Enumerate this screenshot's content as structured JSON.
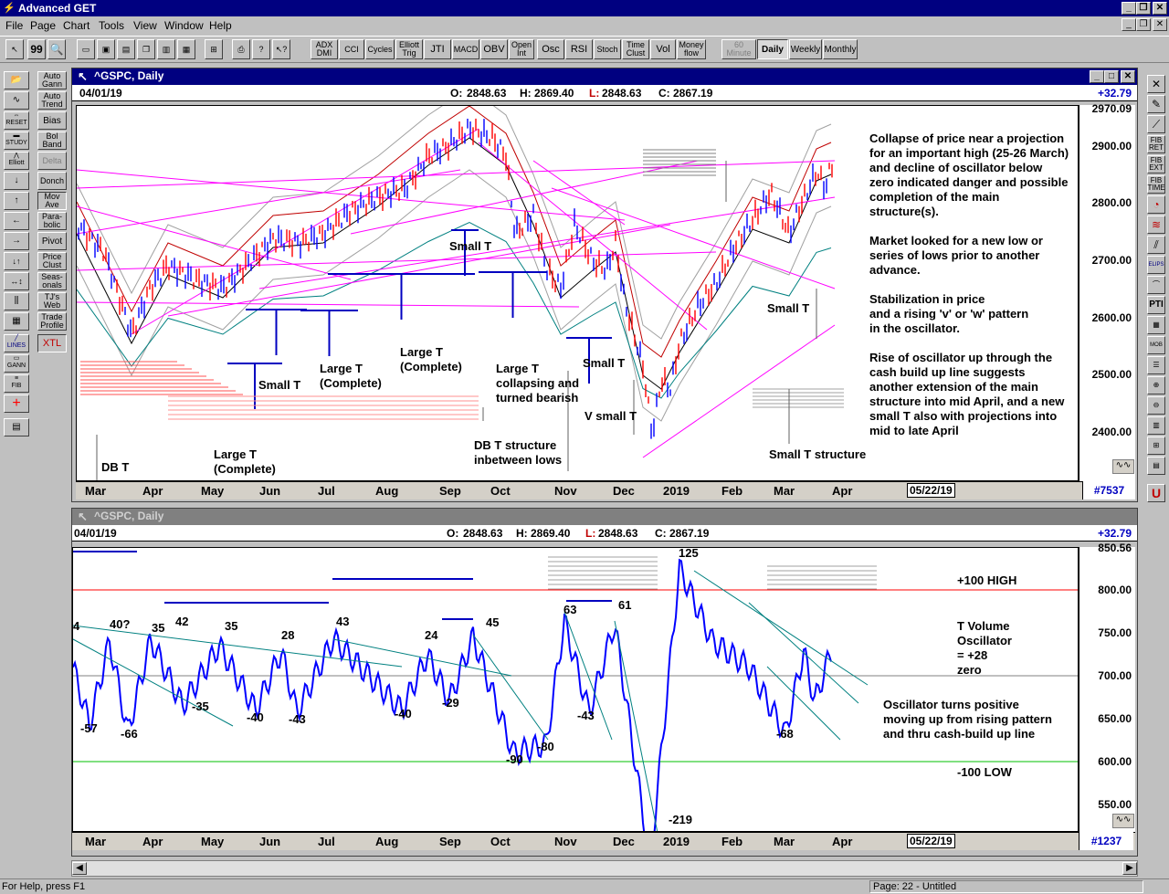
{
  "app": {
    "title": "Advanced GET"
  },
  "menu": [
    "File",
    "Page",
    "Chart",
    "Tools",
    "View",
    "Window",
    "Help"
  ],
  "toolbar": {
    "studies": [
      "ADX DMI",
      "CCI",
      "Cycles",
      "Elliott Trig",
      "JTI",
      "MACD",
      "OBV",
      "Open Int",
      "Osc",
      "RSI",
      "Stoch",
      "Time Clust",
      "Vol",
      "Money flow"
    ],
    "timeframes": [
      "60 Minute",
      "Daily",
      "Weekly",
      "Monthly"
    ],
    "selected_timeframe": "Daily"
  },
  "left_tools": {
    "col1": [
      "RESET",
      "STUDY",
      "Elliott",
      "LINES",
      "GANN",
      "FIB"
    ],
    "col2": [
      "Auto Gann",
      "Auto Trend",
      "Bias",
      "Bol Band",
      "Delta",
      "Donch",
      "Mov Ave",
      "Para-bolic",
      "Pivot",
      "Price Clust",
      "Seas-onals",
      "TJ's Web",
      "Trade Profile",
      "XTL"
    ]
  },
  "right_tools": [
    "FIB RET",
    "FIB EXT",
    "FIB TIME",
    "ELIPS",
    "PTI",
    "MOB"
  ],
  "price_chart": {
    "title": "^GSPC, Daily",
    "date": "04/01/19",
    "ohlc": {
      "o_label": "O:",
      "o": "2848.63",
      "h_label": "H:",
      "h": "2869.40",
      "l_label": "L:",
      "l": "2848.63",
      "c_label": "C:",
      "c": "2867.19"
    },
    "change": "+32.79",
    "price_ticks": [
      "2970.09",
      "2900.00",
      "2800.00",
      "2700.00",
      "2600.00",
      "2500.00",
      "2400.00"
    ],
    "months": [
      "Mar",
      "Apr",
      "May",
      "Jun",
      "Jul",
      "Aug",
      "Sep",
      "Oct",
      "Nov",
      "Dec",
      "2019",
      "Feb",
      "Mar",
      "Apr"
    ],
    "end_date": "05/22/19",
    "bar_count": "#7537",
    "annotations": {
      "a1": "Collapse of price near a projection\nfor an important high (25-26 March)\nand decline of oscillator below\nzero indicated danger and possible\ncompletion of the main\nstructure(s).",
      "a2": "Market looked for a new low or\nseries of lows prior to another\nadvance.",
      "a3": "Stabilization in price\nand a rising 'v' or 'w' pattern\nin the oscillator.",
      "a4": "Rise of oscillator up through the\ncash build up line suggests\nanother extension of the main\nstructure into mid April, and a new\nsmall T also with projections into\nmid to late April",
      "small_t_1": "Small T",
      "small_t_2": "Small T",
      "small_t_3": "Small T",
      "small_t_4": "Small T",
      "large_t_complete_1": "Large T\n(Complete)",
      "large_t_complete_2": "Large T\n(Complete)",
      "large_t_complete_3": "Large T\n(Complete)",
      "large_t_collapse": "Large T\ncollapsing and\nturned bearish",
      "v_small_t": "V small T",
      "db_t": "DB T",
      "db_t_structure": "DB T structure\ninbetween lows",
      "small_t_structure": "Small T structure"
    }
  },
  "osc_chart": {
    "title": "^GSPC, Daily",
    "date": "04/01/19",
    "ohlc": {
      "o_label": "O:",
      "o": "2848.63",
      "h_label": "H:",
      "h": "2869.40",
      "l_label": "L:",
      "l": "2848.63",
      "c_label": "C:",
      "c": "2867.19"
    },
    "change": "+32.79",
    "ticks": [
      "850.56",
      "800.00",
      "750.00",
      "700.00",
      "650.00",
      "600.00",
      "550.00"
    ],
    "months": [
      "Mar",
      "Apr",
      "May",
      "Jun",
      "Jul",
      "Aug",
      "Sep",
      "Oct",
      "Nov",
      "Dec",
      "2019",
      "Feb",
      "Mar",
      "Apr"
    ],
    "end_date": "05/22/19",
    "bar_count": "#1237",
    "labels": {
      "high": "+100 HIGH",
      "low": "-100 LOW",
      "osc": "T Volume\nOscillator\n= +28\nzero",
      "note": "Oscillator turns positive\nmoving up from rising pattern\nand thru cash-build up line"
    },
    "peaks": [
      "4",
      "40?",
      "35",
      "42",
      "35",
      "28",
      "43",
      "24",
      "45",
      "63",
      "61",
      "125"
    ],
    "troughs": [
      "-57",
      "-66",
      "-35",
      "-40",
      "-43",
      "-40",
      "-29",
      "-90",
      "-80",
      "-43",
      "-219",
      "-68"
    ]
  },
  "status": {
    "help": "For Help, press F1",
    "page": "Page: 22 - Untitled"
  },
  "colors": {
    "price_up": "#0000ff",
    "price_down": "#ff0000",
    "trend": "#ff00ff",
    "osc": "#0000ff",
    "zero_line": "#808080",
    "high_line": "#ff0000",
    "low_line": "#00c000"
  }
}
